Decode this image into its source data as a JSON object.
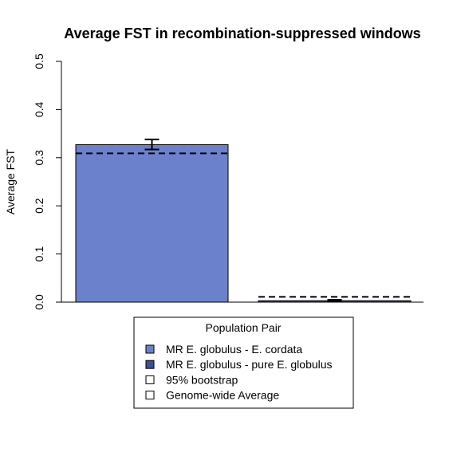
{
  "chart_data": {
    "type": "bar",
    "title": "Average FST in recombination-suppressed windows",
    "ylabel": "Average FST",
    "xlabel": "",
    "ylim": [
      0,
      0.5
    ],
    "yticks": [
      "0.0",
      "0.1",
      "0.2",
      "0.3",
      "0.4",
      "0.5"
    ],
    "categories": [
      "MR E. globulus - E. cordata",
      "MR E. globulus - pure E. globulus"
    ],
    "values": [
      0.327,
      0.003
    ],
    "ci_lower": [
      0.317,
      0.002
    ],
    "ci_upper": [
      0.338,
      0.005
    ],
    "genome_wide_average": [
      0.309,
      0.011
    ],
    "colors": [
      "#6b81cc",
      "#3d4f99"
    ],
    "legend": {
      "title": "Population Pair",
      "position": "bottom-center",
      "entries": [
        {
          "label": "MR E. globulus - E. cordata",
          "color": "#6b81cc"
        },
        {
          "label": "MR E. globulus - pure E. globulus",
          "color": "#3d4f99"
        },
        {
          "label": "95% bootstrap",
          "color": "#ffffff"
        },
        {
          "label": "Genome-wide Average",
          "color": "#ffffff"
        }
      ]
    },
    "grid": false
  }
}
